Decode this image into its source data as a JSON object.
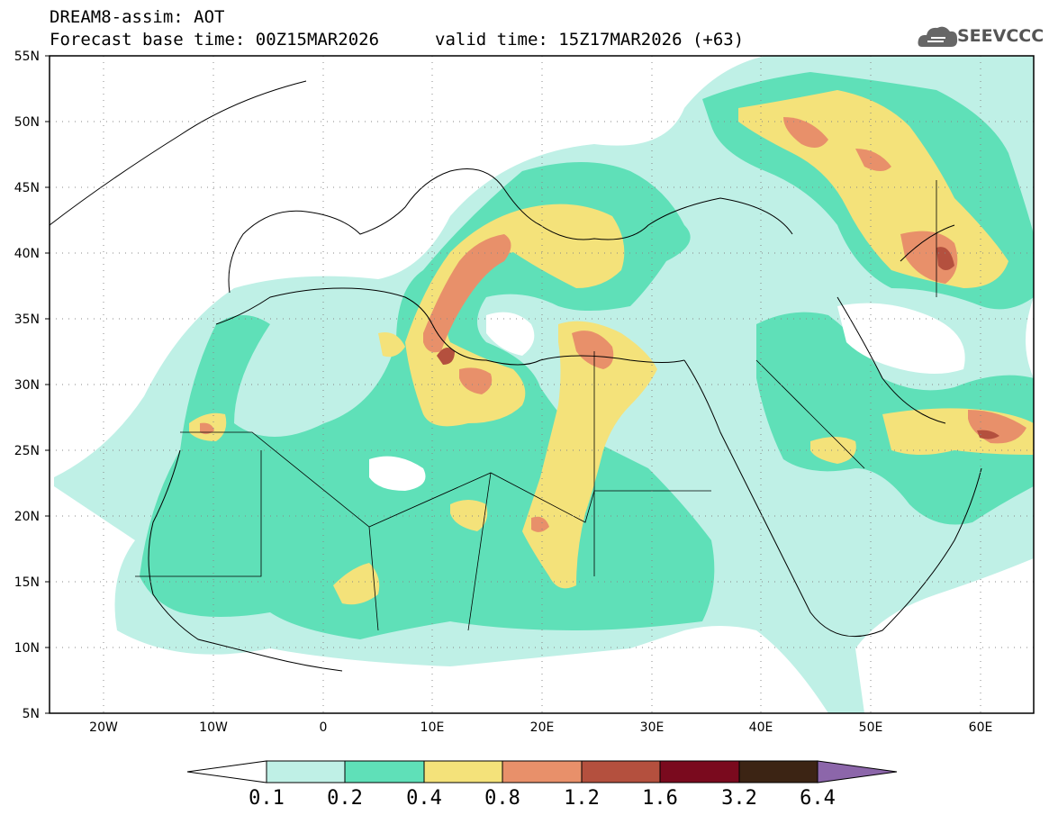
{
  "header": {
    "model_line": "DREAM8-assim: AOT",
    "base_line": "Forecast base time: 00Z15MAR2026",
    "valid_line": "valid time: 15Z17MAR2026 (+63)"
  },
  "logo": {
    "text": "SEEVCCC"
  },
  "map": {
    "lat_labels": [
      "55N",
      "50N",
      "45N",
      "40N",
      "35N",
      "30N",
      "25N",
      "20N",
      "15N",
      "10N",
      "5N"
    ],
    "lon_labels": [
      "20W",
      "10W",
      "0",
      "10E",
      "20E",
      "30E",
      "40E",
      "50E",
      "60E"
    ]
  },
  "colorbar": {
    "colors": [
      "#ffffff",
      "#bff0e6",
      "#5fe0b8",
      "#f4e27a",
      "#e8906a",
      "#b4503e",
      "#7a0a1e",
      "#3c2414",
      "#8c66aa"
    ],
    "labels": [
      "0.1",
      "0.2",
      "0.4",
      "0.8",
      "1.2",
      "1.6",
      "3.2",
      "6.4"
    ]
  }
}
